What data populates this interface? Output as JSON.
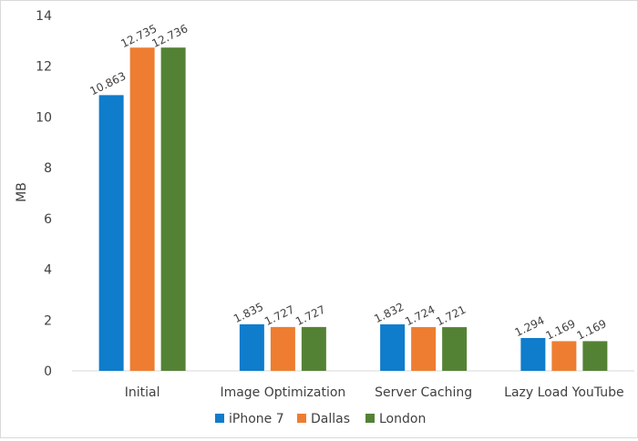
{
  "chart_data": {
    "type": "bar",
    "title": "",
    "xlabel": "",
    "ylabel": "MB",
    "ylim": [
      0,
      14
    ],
    "yticks": [
      "0",
      "2",
      "4",
      "6",
      "8",
      "10",
      "12",
      "14"
    ],
    "grid": false,
    "legend_position": "bottom",
    "categories": [
      "Initial",
      "Image Optimization",
      "Server Caching",
      "Lazy Load YouTube"
    ],
    "series": [
      {
        "name": "iPhone 7",
        "color": "#0f7ccc",
        "values": [
          10.863,
          1.835,
          1.832,
          1.294
        ],
        "labels": [
          "10.863",
          "1.835",
          "1.832",
          "1.294"
        ]
      },
      {
        "name": "Dallas",
        "color": "#ee7d31",
        "values": [
          12.735,
          1.727,
          1.724,
          1.169
        ],
        "labels": [
          "12.735",
          "1.727",
          "1.724",
          "1.169"
        ]
      },
      {
        "name": "London",
        "color": "#548235",
        "values": [
          12.736,
          1.727,
          1.721,
          1.169
        ],
        "labels": [
          "12.736",
          "1.727",
          "1.721",
          "1.169"
        ]
      }
    ]
  }
}
